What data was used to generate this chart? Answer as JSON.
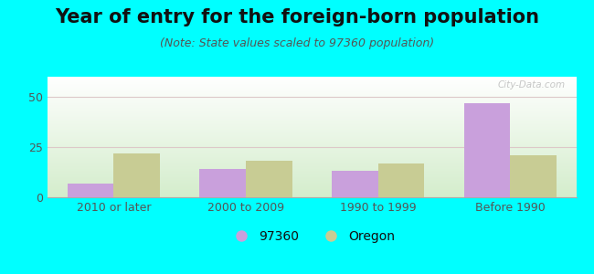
{
  "title": "Year of entry for the foreign-born population",
  "subtitle": "(Note: State values scaled to 97360 population)",
  "categories": [
    "2010 or later",
    "2000 to 2009",
    "1990 to 1999",
    "Before 1990"
  ],
  "series_97360": [
    7,
    14,
    13,
    47
  ],
  "series_oregon": [
    22,
    18,
    17,
    21
  ],
  "color_97360": "#c9a0dc",
  "color_oregon": "#c8cc94",
  "ylim": [
    0,
    60
  ],
  "yticks": [
    0,
    25,
    50
  ],
  "bg_outer": "#00ffff",
  "bg_plot_top": "#ffffff",
  "bg_plot_bottom": "#d4edcc",
  "legend_label_97360": "97360",
  "legend_label_oregon": "Oregon",
  "title_fontsize": 15,
  "subtitle_fontsize": 9,
  "bar_width": 0.35,
  "grid_color": "#ddc8c8",
  "tick_color": "#555555",
  "watermark": "City-Data.com"
}
